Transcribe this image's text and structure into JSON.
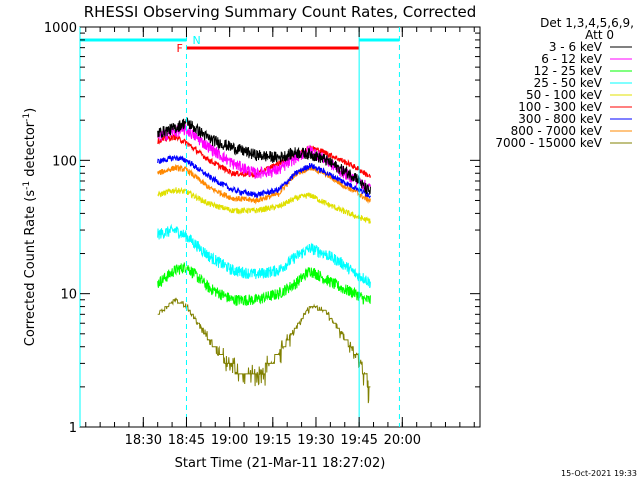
{
  "chart_data": {
    "type": "line",
    "title": "RHESSI Observing Summary Count Rates, Corrected",
    "xlabel": "Start Time (21-Mar-11 18:27:02)",
    "ylabel_main": "Corrected Count Rate (s",
    "ylabel_sup1": "-1",
    "ylabel_mid": " detector",
    "ylabel_sup2": "-1",
    "ylabel_end": ")",
    "yscale": "log",
    "ylim": [
      1,
      1000
    ],
    "y_ticks": [
      {
        "value": 1,
        "label": "1"
      },
      {
        "value": 10,
        "label": "10"
      },
      {
        "value": 100,
        "label": "100"
      },
      {
        "value": 1000,
        "label": "1000"
      }
    ],
    "xlim_minutes": [
      -37,
      102
    ],
    "x_ticks": [
      {
        "t": -15,
        "label": "18:30"
      },
      {
        "t": 0,
        "label": "18:45"
      },
      {
        "t": 15,
        "label": "19:00"
      },
      {
        "t": 30,
        "label": "19:15"
      },
      {
        "t": 45,
        "label": "19:30"
      },
      {
        "t": 60,
        "label": "19:45"
      },
      {
        "t": 75,
        "label": "20:00"
      }
    ],
    "legend": {
      "placement": "right",
      "header": [
        "Det 1,3,4,5,6,9,",
        "Att 0"
      ],
      "entries": [
        {
          "label": "3 - 6 keV",
          "color": "#000000"
        },
        {
          "label": "6 - 12 keV",
          "color": "#ff00ff"
        },
        {
          "label": "12 - 25 keV",
          "color": "#00ff00"
        },
        {
          "label": "25 - 50 keV",
          "color": "#00ffff"
        },
        {
          "label": "50 - 100 keV",
          "color": "#e0e000"
        },
        {
          "label": "100 - 300 keV",
          "color": "#ff0000"
        },
        {
          "label": "300 - 800 keV",
          "color": "#0000ff"
        },
        {
          "label": "800 - 7000 keV",
          "color": "#ff8800"
        },
        {
          "label": "7000 - 15000 keV",
          "color": "#808000"
        }
      ]
    },
    "series": [
      {
        "color": "#000000",
        "t": [
          -10,
          -4,
          0,
          8,
          16,
          24,
          32,
          38,
          43,
          48,
          54,
          59,
          62,
          64
        ],
        "v": [
          160,
          175,
          195,
          145,
          125,
          110,
          105,
          115,
          112,
          102,
          85,
          75,
          62,
          58
        ]
      },
      {
        "color": "#ff00ff",
        "t": [
          -10,
          -4,
          0,
          8,
          16,
          24,
          32,
          38,
          43,
          48,
          54,
          59,
          62,
          64
        ],
        "v": [
          150,
          165,
          170,
          125,
          95,
          80,
          85,
          105,
          120,
          102,
          82,
          72,
          65,
          62
        ]
      },
      {
        "color": "#ff0000",
        "t": [
          -10,
          -4,
          0,
          8,
          16,
          24,
          32,
          38,
          43,
          48,
          54,
          59,
          62,
          64
        ],
        "v": [
          140,
          150,
          135,
          100,
          80,
          78,
          95,
          110,
          125,
          115,
          100,
          88,
          80,
          75
        ]
      },
      {
        "color": "#0000ff",
        "t": [
          -10,
          -4,
          0,
          8,
          16,
          24,
          32,
          38,
          43,
          48,
          54,
          59,
          62,
          64
        ],
        "v": [
          98,
          105,
          100,
          75,
          60,
          55,
          60,
          80,
          92,
          82,
          70,
          62,
          57,
          54
        ]
      },
      {
        "color": "#ff8800",
        "t": [
          -10,
          -4,
          0,
          8,
          16,
          24,
          32,
          38,
          43,
          48,
          54,
          59,
          62,
          64
        ],
        "v": [
          80,
          88,
          85,
          62,
          52,
          50,
          56,
          80,
          88,
          80,
          66,
          58,
          52,
          50
        ]
      },
      {
        "color": "#e0e000",
        "t": [
          -10,
          -4,
          0,
          8,
          16,
          24,
          32,
          38,
          43,
          48,
          54,
          59,
          62,
          64
        ],
        "v": [
          55,
          60,
          58,
          47,
          42,
          42,
          45,
          52,
          55,
          48,
          42,
          38,
          36,
          35
        ]
      },
      {
        "color": "#00ffff",
        "t": [
          -10,
          -4,
          0,
          8,
          16,
          24,
          32,
          38,
          43,
          48,
          54,
          59,
          62,
          64
        ],
        "v": [
          28,
          30,
          27,
          19,
          15,
          14,
          15,
          19,
          22,
          20,
          17,
          14,
          13,
          12
        ]
      },
      {
        "color": "#00ff00",
        "t": [
          -10,
          -4,
          0,
          8,
          16,
          24,
          32,
          38,
          43,
          48,
          54,
          59,
          62,
          64
        ],
        "v": [
          12,
          15,
          16,
          11,
          9,
          9,
          10,
          12,
          15,
          13,
          11,
          10,
          9,
          9
        ]
      },
      {
        "color": "#808000",
        "t": [
          -10,
          -4,
          0,
          4,
          8,
          14,
          20,
          24,
          28,
          32,
          38,
          43,
          48,
          54,
          59,
          62,
          64
        ],
        "v": [
          7,
          9,
          8,
          6,
          4.5,
          3,
          2.5,
          2.5,
          2.8,
          3.5,
          5.5,
          8,
          7.5,
          5,
          3.5,
          2.5,
          2
        ]
      }
    ],
    "annotations": {
      "flag_F": "F",
      "flag_N": "N",
      "N_color": "#00ffff",
      "F_color": "#ff0000",
      "eclipse_t": [
        [
          -37,
          0
        ],
        [
          60,
          74
        ]
      ],
      "flare_t": [
        0,
        60
      ],
      "night_boundaries_t": [
        0,
        74
      ],
      "day_boundaries_t": [
        60,
        -35
      ],
      "level": 750
    }
  },
  "timestamp": "15-Oct-2021 19:33"
}
